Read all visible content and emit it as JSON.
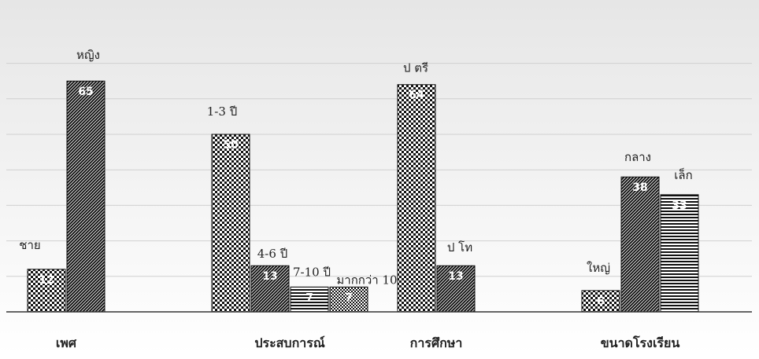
{
  "chart_data": {
    "type": "bar",
    "ylim": [
      0,
      70
    ],
    "grid": true,
    "legend": "none",
    "groups": [
      {
        "name": "เพศ",
        "bars": [
          {
            "label": "ชาย",
            "value": 12,
            "pattern": "checker"
          },
          {
            "label": "หญิง",
            "value": 65,
            "pattern": "diagonal"
          }
        ]
      },
      {
        "name": "ประสบการณ์",
        "bars": [
          {
            "label": "1-3 ปี",
            "value": 50,
            "pattern": "checker"
          },
          {
            "label": "4-6 ปี",
            "value": 13,
            "pattern": "diagonal"
          },
          {
            "label": "7-10 ปี",
            "value": 7,
            "pattern": "horizontal"
          },
          {
            "label": "มากกว่า 10",
            "value": 7,
            "pattern": "dense-checker"
          }
        ]
      },
      {
        "name": "การศึกษา",
        "bars": [
          {
            "label": "ป ตรี",
            "value": 64,
            "pattern": "checker"
          },
          {
            "label": "ป โท",
            "value": 13,
            "pattern": "diagonal"
          }
        ]
      },
      {
        "name": "ขนาดโรงเรียน",
        "bars": [
          {
            "label": "ใหญ่",
            "value": 6,
            "pattern": "checker"
          },
          {
            "label": "กลาง",
            "value": 38,
            "pattern": "diagonal"
          },
          {
            "label": "เล็ก",
            "value": 33,
            "pattern": "horizontal"
          }
        ]
      }
    ]
  },
  "colors": {
    "background_top": "#e6e6e6",
    "background_bottom": "#ffffff",
    "bar_dark": "#111111",
    "bar_light": "#ffffff",
    "gridline": "#d0d0d0",
    "axis": "#333333",
    "value_text": "#ffffff"
  }
}
